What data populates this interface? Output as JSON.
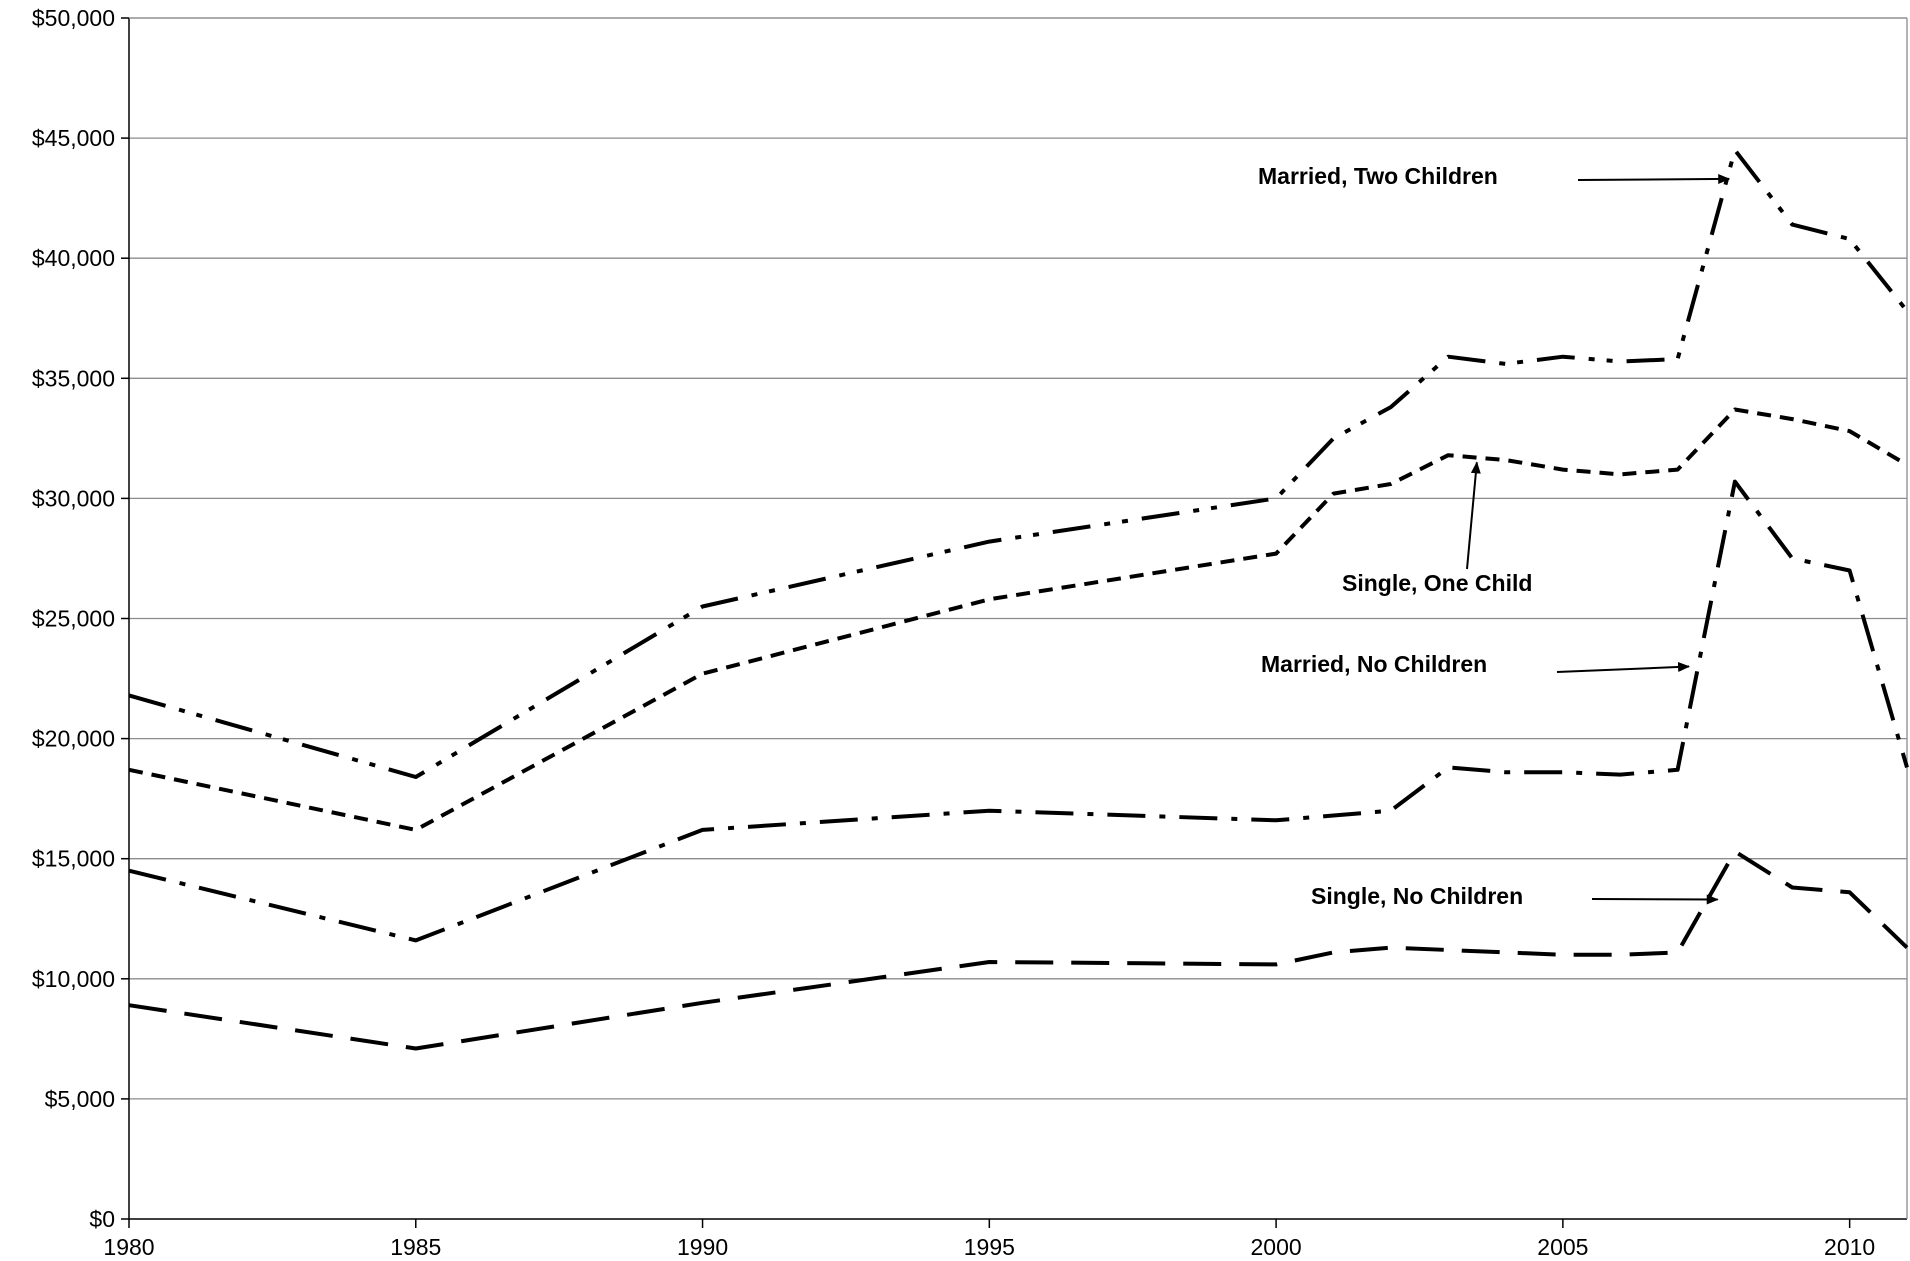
{
  "chart_data": {
    "type": "line",
    "title": "",
    "xlabel": "",
    "ylabel": "",
    "xlim": [
      1980,
      2011
    ],
    "ylim": [
      0,
      50000
    ],
    "x_ticks": [
      1980,
      1985,
      1990,
      1995,
      2000,
      2005,
      2010
    ],
    "x_tick_labels": [
      "1980",
      "1985",
      "1990",
      "1995",
      "2000",
      "2005",
      "2010"
    ],
    "y_ticks": [
      0,
      5000,
      10000,
      15000,
      20000,
      25000,
      30000,
      35000,
      40000,
      45000,
      50000
    ],
    "y_tick_labels": [
      "$0",
      "$5,000",
      "$10,000",
      "$15,000",
      "$20,000",
      "$25,000",
      "$30,000",
      "$35,000",
      "$40,000",
      "$45,000",
      "$50,000"
    ],
    "grid": "horizontal",
    "line_color": "#000000",
    "grid_color": "#8c8c8c",
    "series": [
      {
        "name": "Married, Two Children",
        "dash": "dash-dot-dot",
        "x": [
          1980,
          1985,
          1990,
          1995,
          2000,
          2001,
          2002,
          2003,
          2004,
          2005,
          2006,
          2007,
          2008,
          2009,
          2010,
          2011
        ],
        "values": [
          21800,
          18400,
          25500,
          28200,
          30000,
          32500,
          33800,
          35900,
          35600,
          35900,
          35700,
          35800,
          44500,
          41400,
          40800,
          37800
        ]
      },
      {
        "name": "Single, One Child",
        "dash": "short-dash",
        "x": [
          1980,
          1985,
          1990,
          1995,
          2000,
          2001,
          2002,
          2003,
          2004,
          2005,
          2006,
          2007,
          2008,
          2009,
          2010,
          2011
        ],
        "values": [
          18700,
          16200,
          22700,
          25800,
          27700,
          30200,
          30600,
          31800,
          31600,
          31200,
          31000,
          31200,
          33700,
          33300,
          32800,
          31400
        ]
      },
      {
        "name": "Married, No Children",
        "dash": "dash-dot",
        "x": [
          1980,
          1985,
          1990,
          1995,
          2000,
          2001,
          2002,
          2003,
          2004,
          2005,
          2006,
          2007,
          2008,
          2009,
          2010,
          2011
        ],
        "values": [
          14500,
          11600,
          16200,
          17000,
          16600,
          16800,
          17000,
          18800,
          18600,
          18600,
          18500,
          18700,
          30700,
          27500,
          27000,
          18800
        ]
      },
      {
        "name": "Single, No Children",
        "dash": "long-dash",
        "x": [
          1980,
          1985,
          1990,
          1995,
          2000,
          2001,
          2002,
          2003,
          2004,
          2005,
          2006,
          2007,
          2008,
          2009,
          2010,
          2011
        ],
        "values": [
          8900,
          7100,
          9000,
          10700,
          10600,
          11100,
          11300,
          11200,
          11100,
          11000,
          11000,
          11100,
          15300,
          13800,
          13600,
          11300
        ]
      }
    ],
    "annotations": [
      {
        "text": "Married, Two Children",
        "series": "Married, Two Children",
        "points_to": [
          2007.9,
          43300
        ]
      },
      {
        "text": "Single, One Child",
        "series": "Single, One Child",
        "points_to": [
          2003.5,
          31500
        ]
      },
      {
        "text": "Married, No Children",
        "series": "Married, No Children",
        "points_to": [
          2007.2,
          23000
        ]
      },
      {
        "text": "Single, No Children",
        "series": "Single, No Children",
        "points_to": [
          2007.7,
          13300
        ]
      }
    ]
  }
}
